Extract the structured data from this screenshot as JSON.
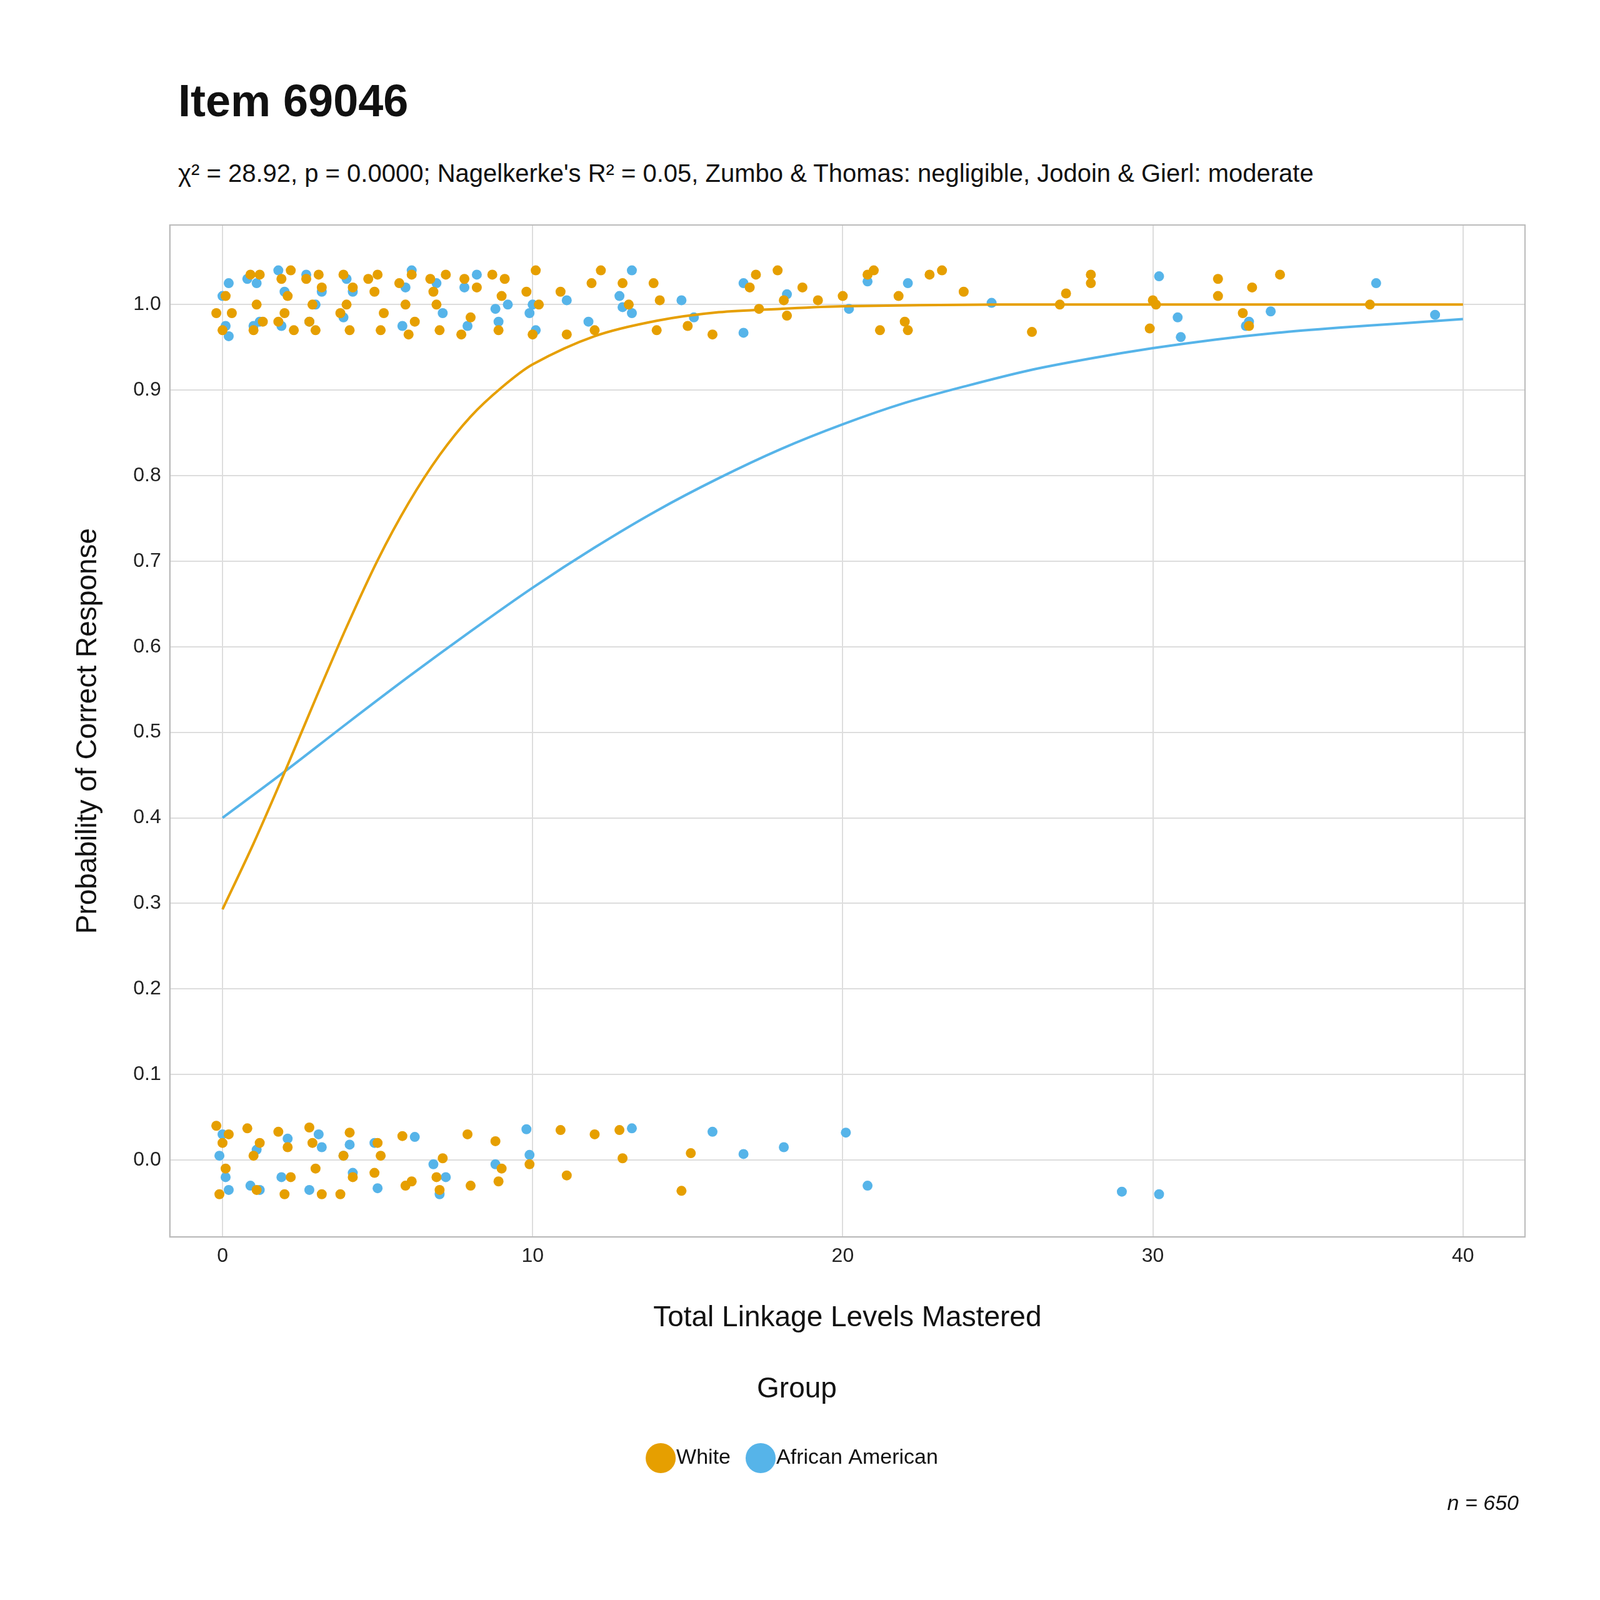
{
  "chart_data": {
    "type": "scatter",
    "title": "Item 69046",
    "subtitle": "χ² = 28.92, p = 0.0000; Nagelkerke's R² = 0.05, Zumbo & Thomas: negligible, Jodoin & Gierl: moderate",
    "x_label": "Total Linkage Levels Mastered",
    "y_label": "Probability of Correct Response",
    "legend_title": "Group",
    "annotation": "n = 650",
    "legend": "bottom",
    "grid": true,
    "xlim": [
      -1.7,
      42
    ],
    "xticks": [
      0,
      10,
      20,
      30,
      40
    ],
    "ylim": [
      -0.09,
      1.093
    ],
    "yticks": [
      {
        "value": 0,
        "label": "0.0"
      },
      0.1,
      0.2,
      0.3,
      0.4,
      0.5,
      0.6,
      0.7,
      0.8,
      0.9,
      {
        "value": 1,
        "label": "1.0"
      }
    ],
    "series": [
      {
        "name": "White",
        "type": "scatter",
        "marker": "circle",
        "color": "#E69F00",
        "x": [
          -0.2,
          0.1,
          0,
          0.3,
          0.9,
          1.2,
          1,
          1.1,
          1.3,
          1.9,
          2,
          2.1,
          2.2,
          2.3,
          1.8,
          2.7,
          2.9,
          3,
          3.1,
          3.2,
          2.8,
          3.9,
          4,
          4.1,
          4.2,
          3.8,
          4.7,
          4.9,
          5.1,
          5,
          5.2,
          5.7,
          5.9,
          6,
          6.1,
          6.2,
          6.7,
          6.9,
          7,
          7.2,
          6.8,
          7.8,
          8,
          7.7,
          8.2,
          8.7,
          9,
          8.9,
          9.1,
          9.8,
          10.1,
          10,
          10.2,
          10.9,
          11.1,
          11.9,
          12.2,
          12,
          12.9,
          13.1,
          13.9,
          14,
          14.1,
          15,
          15.8,
          17,
          17.2,
          17.3,
          17.9,
          18.1,
          18.2,
          18.7,
          19.2,
          20,
          20.8,
          21,
          21.2,
          21.8,
          22,
          22.1,
          22.8,
          23.2,
          23.9,
          26.1,
          27,
          27.2,
          28,
          28,
          29.9,
          30,
          30.1,
          32.1,
          32.1,
          32.9,
          33.1,
          33.2,
          34.1,
          37,
          -0.2,
          0,
          0.1,
          -0.1,
          0.2,
          0.8,
          1,
          1.1,
          1.2,
          1.8,
          2,
          2.1,
          2.2,
          2.8,
          3,
          3.2,
          2.9,
          3.9,
          4.1,
          3.8,
          4.2,
          5,
          5.1,
          4.9,
          5.8,
          5.9,
          6.1,
          6.9,
          7.1,
          7,
          7.9,
          8,
          8.8,
          9,
          8.9,
          9.9,
          10.9,
          11.1,
          12,
          12.8,
          12.9,
          14.8,
          15.1
        ],
        "values": [
          0.99,
          1.01,
          0.97,
          0.99,
          1.035,
          1.035,
          0.97,
          1.0,
          0.98,
          1.03,
          0.99,
          1.01,
          1.04,
          0.97,
          0.98,
          1.03,
          1.0,
          0.97,
          1.035,
          1.02,
          0.98,
          1.035,
          1.0,
          0.97,
          1.02,
          0.99,
          1.03,
          1.015,
          0.97,
          1.035,
          0.99,
          1.025,
          1.0,
          0.965,
          1.035,
          0.98,
          1.03,
          1.0,
          0.97,
          1.035,
          1.015,
          1.03,
          0.985,
          0.965,
          1.02,
          1.035,
          1.01,
          0.97,
          1.03,
          1.015,
          1.04,
          0.965,
          1.0,
          1.015,
          0.965,
          1.025,
          1.04,
          0.97,
          1.025,
          1.0,
          1.025,
          0.97,
          1.005,
          0.975,
          0.965,
          1.02,
          1.035,
          0.995,
          1.04,
          1.005,
          0.987,
          1.02,
          1.005,
          1.01,
          1.035,
          1.04,
          0.97,
          1.01,
          0.98,
          0.97,
          1.035,
          1.04,
          1.015,
          0.968,
          1.0,
          1.013,
          1.025,
          1.035,
          0.972,
          1.005,
          1.0,
          1.03,
          1.01,
          0.99,
          0.975,
          1.02,
          1.035,
          1.0,
          0.04,
          0.02,
          -0.01,
          -0.04,
          0.03,
          0.037,
          0.005,
          -0.035,
          0.02,
          0.033,
          -0.04,
          0.015,
          -0.02,
          0.038,
          -0.01,
          -0.04,
          0.02,
          0.005,
          0.032,
          -0.04,
          -0.02,
          0.02,
          0.005,
          -0.015,
          0.028,
          -0.03,
          -0.025,
          -0.02,
          0.002,
          -0.035,
          0.03,
          -0.03,
          0.022,
          -0.01,
          -0.025,
          -0.005,
          0.035,
          -0.018,
          0.03,
          0.035,
          0.002,
          -0.036,
          0.008
        ]
      },
      {
        "name": "African American",
        "type": "scatter",
        "marker": "circle",
        "color": "#56B4E9",
        "x": [
          0,
          0.2,
          0.1,
          0.2,
          0.8,
          1,
          1.1,
          1.2,
          1.8,
          2,
          1.9,
          2.7,
          2.8,
          3,
          3.2,
          4.2,
          4,
          3.9,
          5.9,
          6.1,
          5.8,
          6.9,
          7.1,
          7.8,
          8.2,
          7.9,
          8.8,
          9.2,
          8.9,
          9.9,
          10.1,
          10,
          11.1,
          11.8,
          12.8,
          13.2,
          13.2,
          12.9,
          14.8,
          15.2,
          16.8,
          16.8,
          18.2,
          20.2,
          20.8,
          22.1,
          24.8,
          30.2,
          30.8,
          30.9,
          33.1,
          33,
          33.8,
          37.2,
          39.1,
          0,
          0.1,
          0.2,
          -0.1,
          0.9,
          1.1,
          1.2,
          2.1,
          1.9,
          2.8,
          3.1,
          3.2,
          3.9,
          4.1,
          4.2,
          5,
          4.9,
          6.2,
          6.8,
          7.2,
          7,
          8.8,
          9.8,
          9.9,
          13.2,
          15.8,
          16.8,
          18.1,
          20.1,
          20.8,
          29,
          30.2
        ],
        "values": [
          1.01,
          1.025,
          0.975,
          0.963,
          1.03,
          0.975,
          1.025,
          0.98,
          1.04,
          1.015,
          0.975,
          1.035,
          0.98,
          1.0,
          1.015,
          1.015,
          1.03,
          0.985,
          1.02,
          1.04,
          0.975,
          1.025,
          0.99,
          1.02,
          1.035,
          0.975,
          0.995,
          1.0,
          0.98,
          0.99,
          0.97,
          1.0,
          1.005,
          0.98,
          1.01,
          1.04,
          0.99,
          0.997,
          1.005,
          0.985,
          1.025,
          0.967,
          1.012,
          0.995,
          1.027,
          1.025,
          1.002,
          1.033,
          0.985,
          0.962,
          0.98,
          0.975,
          0.992,
          1.025,
          0.988,
          0.03,
          -0.02,
          -0.035,
          0.005,
          -0.03,
          0.012,
          -0.035,
          0.025,
          -0.02,
          -0.035,
          0.03,
          0.015,
          0.005,
          0.018,
          -0.015,
          -0.033,
          0.02,
          0.027,
          -0.005,
          -0.02,
          -0.04,
          -0.005,
          0.036,
          0.006,
          0.037,
          0.033,
          0.007,
          0.015,
          0.032,
          -0.03,
          -0.037,
          -0.04
        ]
      },
      {
        "name": "White",
        "type": "line",
        "line_style": "solid",
        "color": "#E69F00",
        "x": [
          0,
          1,
          2,
          3,
          4,
          5,
          6,
          7,
          8,
          9,
          10,
          12,
          14,
          16,
          18,
          20,
          25,
          30,
          35,
          40
        ],
        "values": [
          0.293,
          0.37,
          0.453,
          0.539,
          0.623,
          0.701,
          0.768,
          0.824,
          0.869,
          0.903,
          0.93,
          0.963,
          0.981,
          0.991,
          0.995,
          0.998,
          1.0,
          1.0,
          1.0,
          1.0
        ]
      },
      {
        "name": "African American",
        "type": "line",
        "line_style": "solid",
        "color": "#56B4E9",
        "x": [
          0,
          2,
          4,
          6,
          8,
          10,
          12,
          14,
          16,
          18,
          20,
          22,
          24,
          26,
          28,
          30,
          32,
          34,
          36,
          38,
          40
        ],
        "values": [
          0.4,
          0.454,
          0.51,
          0.565,
          0.618,
          0.669,
          0.716,
          0.759,
          0.797,
          0.831,
          0.86,
          0.885,
          0.905,
          0.923,
          0.937,
          0.949,
          0.959,
          0.967,
          0.973,
          0.978,
          0.983
        ]
      }
    ]
  }
}
